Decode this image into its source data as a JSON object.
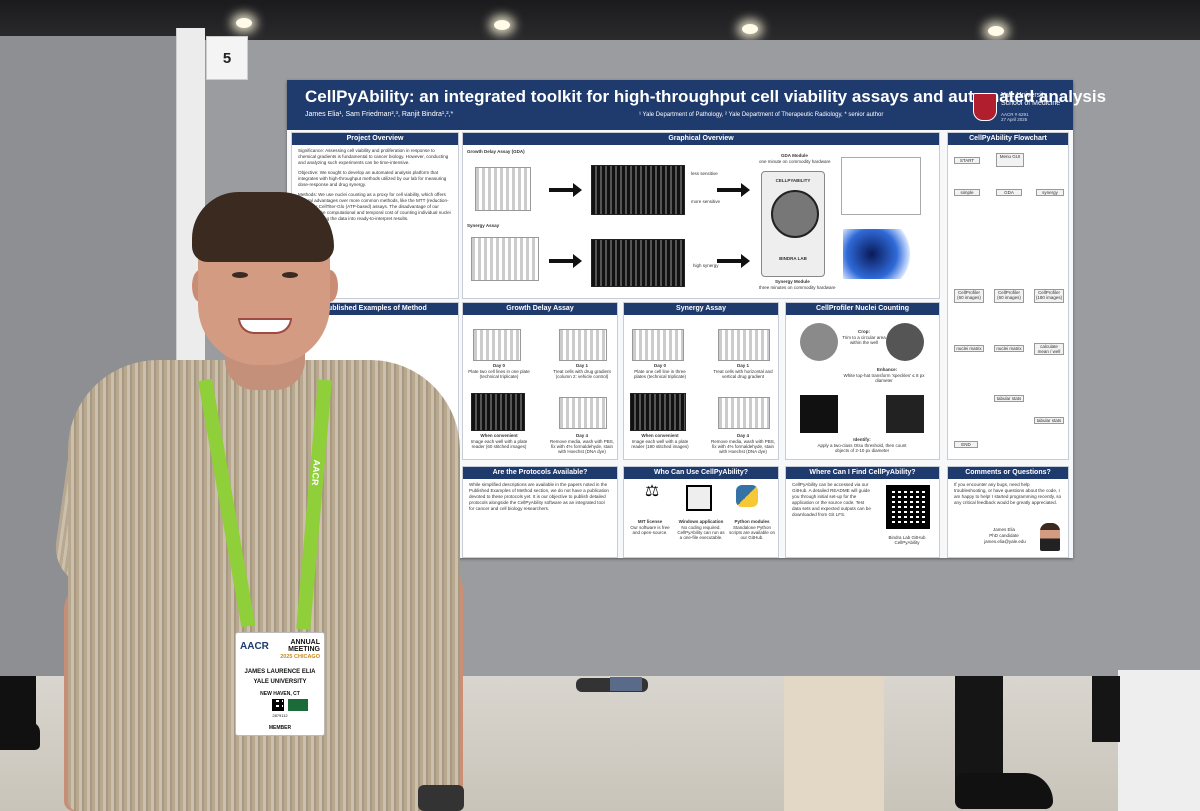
{
  "booth_number": "5",
  "poster": {
    "title": "CellPyAbility: an integrated toolkit for high-throughput cell viability assays and automated analysis",
    "authors": "James Elia¹, Sam Friedman²,³, Ranjit Bindra¹,²,*",
    "affiliations": "¹ Yale Department of Pathology, ² Yale Department of Therapeutic Radiology, * senior author",
    "institution_line1": "Yale University",
    "institution_line2": "School of Medicine",
    "meeting_line": "AACR # 6291",
    "date_line": "27 April 2025",
    "sections": {
      "overview": "Project Overview",
      "graphical": "Graphical Overview",
      "flowchart": "CellPyAbility Flowchart",
      "published": "Published Examples of Method",
      "gda": "Growth Delay Assay",
      "synergy": "Synergy Assay",
      "nuclei": "CellProfiler Nuclei Counting",
      "available": "Are the Protocols Available?",
      "who": "Who Can Use CellPyAbility?",
      "where": "Where Can I Find CellPyAbility?",
      "comments": "Comments or Questions?"
    },
    "overview_text": {
      "significance": "Significance: Assessing cell viability and proliferation in response to chemical gradients is fundamental to cancer biology. However, conducting and analyzing such experiments can be time-intensive.",
      "objective": "Objective: We sought to develop an automated analysis platform that integrates with high-throughput methods utilized by our lab for measuring dose-response and drug synergy.",
      "methods": "Methods: We use nuclei counting as a proxy for cell viability, which offers several advantages over more common methods, like the MTT (reduction-based) or CellTiter-Glo (ATP-based) assays. The disadvantage of our method is the computational and temporal cost of counting individual nuclei and processing the data into ready-to-interpret results."
    },
    "graphical": {
      "gda_label": "Growth Delay Assay (GDA)",
      "synergy_label": "Synergy Assay",
      "less_sensitive": "less sensitive",
      "more_sensitive": "more sensitive",
      "high_synergy": "high synergy",
      "gda_module": "GDA Module",
      "gda_module_sub": "one minute on commodity hardware",
      "synergy_module": "Synergy Module",
      "synergy_module_sub": "three minutes on commodity hardware",
      "logo_word": "CELLPYABILITY",
      "logo_lab": "BINDRA LAB"
    },
    "gda_steps": {
      "day0": "Day 0",
      "day0_text": "Plate two cell lines in one plate (technical triplicate)",
      "day1": "Day 1",
      "day1_text": "Treat cells with drug gradient (column 2: vehicle control)",
      "when": "When convenient",
      "when_text": "Image each well with a plate reader (60 stitched images)",
      "day4": "Day 4",
      "day4_text": "Remove media, wash with PBS, fix with 4% formaldehyde, stain with Hoechst (DNA dye)"
    },
    "syn_steps": {
      "day0": "Day 0",
      "day0_text": "Plate one cell line in three plates (technical triplicate)",
      "day1": "Day 1",
      "day1_text": "Treat cells with horizontal and vertical drug gradient",
      "when": "When convenient",
      "when_text": "Image each well with a plate reader (180 stitched images)",
      "day4": "Day 4",
      "day4_text": "Remove media, wash with PBS, fix with 4% formaldehyde, stain with Hoechst (DNA dye)"
    },
    "nuclei_steps": {
      "crop": "Crop:",
      "crop_text": "Trim to a circular area within the well",
      "enhance": "Enhance:",
      "enhance_text": "White top-hat transform 'speckles' ≤ 8 px diameter",
      "identify": "Identify:",
      "identify_text": "Apply a two-class Otsu threshold, then count objects of 2-10 px diameter"
    },
    "flowchart_nodes": [
      "START",
      "Menu GUI",
      "simple",
      "GDA",
      "synergy",
      "CellProfiler (60 images)",
      "CellProfiler (60 images)",
      "CellProfiler (180 images)",
      "nuclei matrix",
      "nuclei matrix",
      "calculate mean / well",
      "tabular stats",
      "tabular stats",
      "END"
    ],
    "available_text": "While simplified descriptions are available in the papers noted in the Published Examples of Method section, we do not have a publication devoted to these protocols yet. It is our objective to publish detailed protocols alongside the CellPyAbility software as an integrated tool for cancer and cell biology researchers.",
    "who": {
      "mit": "MIT license",
      "mit_text": "Our software is free and open-source.",
      "win": "Windows application",
      "win_text": "No coding required. CellPyAbility can run as a one-file executable.",
      "py": "Python modules",
      "py_text": "Standalone Python scripts are available on our GitHub."
    },
    "where_text": "CellPyAbility can be accessed via our GitHub. A detailed README will guide you through initial set-up for the application or the source code. Test data sets and expected outputs can be downloaded from Git LFS.",
    "where_caption": "Bindra Lab GitHub CellPyAbility",
    "comments_text": "If you encounter any bugs, need help troubleshooting, or have questions about the code, I am happy to help! I started programming recently, so any critical feedback would be greatly appreciated.",
    "contact_name": "James Elia",
    "contact_role": "PhD candidate",
    "contact_email": "james.elia@yale.edu"
  },
  "badge": {
    "org": "AACR",
    "event_line1": "ANNUAL",
    "event_line2": "MEETING",
    "event_line3": "2025 CHICAGO",
    "name": "JAMES LAURENCE ELIA",
    "affiliation": "YALE UNIVERSITY",
    "location": "NEW HAVEN, CT",
    "badge_id": "2879112",
    "role": "MEMBER"
  },
  "lanyard_text": "AACR"
}
